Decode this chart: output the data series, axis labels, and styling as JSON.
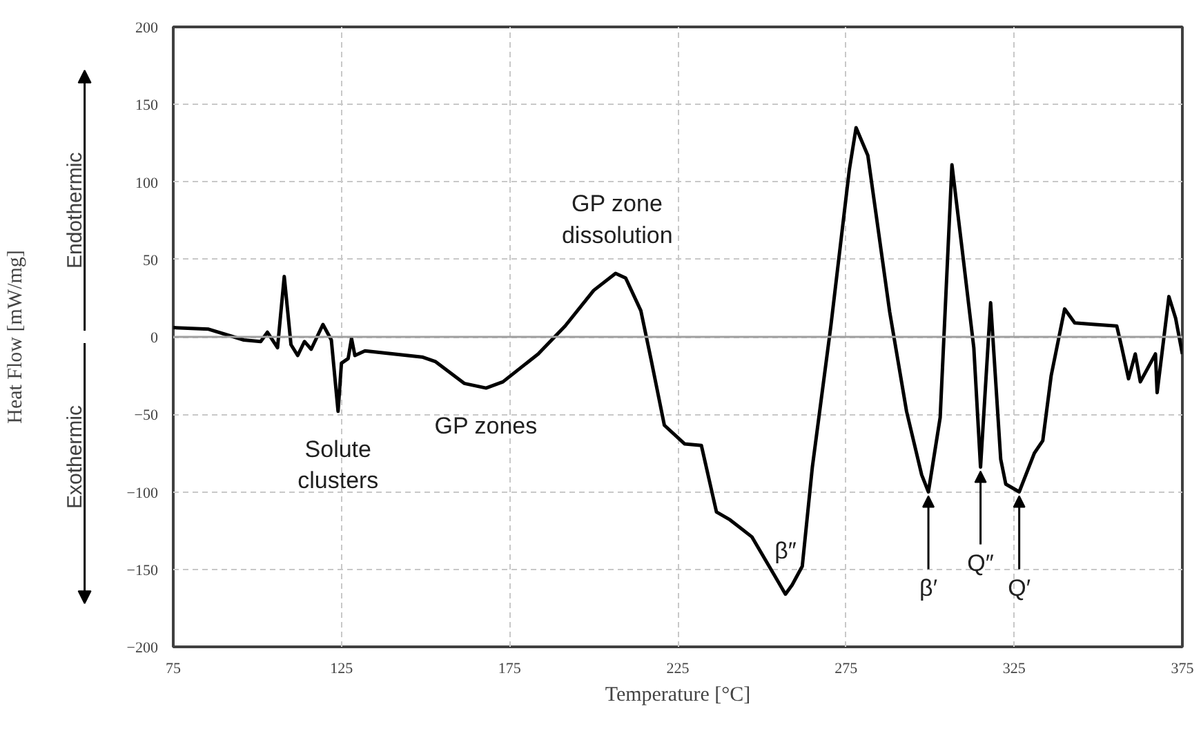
{
  "chart_data": {
    "type": "line",
    "xlabel": "Temperature [°C]",
    "ylabel": "Heat Flow [mW/mg]",
    "x": [
      75,
      85.5,
      96,
      101,
      103,
      106,
      108,
      110,
      112,
      114,
      116,
      119.5,
      122,
      124,
      125,
      127,
      128,
      129,
      132,
      149,
      153,
      161.5,
      168,
      173,
      183.5,
      191.5,
      200,
      206.5,
      209.5,
      214,
      217,
      221,
      227,
      232,
      236.5,
      240.5,
      247,
      253.5,
      257,
      259,
      262,
      265,
      270.5,
      276,
      278,
      281.5,
      288,
      293,
      297.5,
      299.5,
      303,
      306.5,
      309.5,
      313,
      315,
      318,
      321,
      322.5,
      326.5,
      331,
      333.5,
      336,
      340,
      343,
      349,
      355.5,
      357,
      359,
      361,
      362.5,
      367,
      367.5,
      371,
      373,
      375
    ],
    "series": [
      {
        "color": "#000000",
        "values": [
          6,
          5,
          -2,
          -3,
          3,
          -7,
          39,
          -5,
          -12,
          -3,
          -8,
          8,
          -2,
          -48,
          -17,
          -14,
          -1,
          -12,
          -9,
          -13,
          -16,
          -30,
          -33,
          -29,
          -11,
          7,
          30,
          41,
          38,
          17,
          -14,
          -57,
          -69,
          -70,
          -113,
          -118,
          -129,
          -153,
          -166,
          -160,
          -148,
          -84,
          7,
          108,
          135,
          117,
          16,
          -48,
          -89,
          -100,
          -52,
          111,
          57,
          -7,
          -84,
          22,
          -79,
          -95,
          -100,
          -75,
          -67,
          -25,
          18,
          9,
          8,
          7,
          -7,
          -27,
          -11,
          -29,
          -11,
          -36,
          26,
          12,
          -11
        ]
      }
    ],
    "xlim": [
      75,
      375
    ],
    "ylim": [
      -200,
      200
    ],
    "xticks": [
      75,
      125,
      175,
      225,
      275,
      325,
      375
    ],
    "yticks": [
      -200,
      -150,
      -100,
      -50,
      0,
      50,
      100,
      150,
      200
    ],
    "grid": true,
    "ref_lines": [
      {
        "axis": "y",
        "value": 0,
        "color": "#a0a0a0"
      }
    ],
    "annotations": [
      "Endothermic",
      "Exothermic",
      {
        "text": "Solute clusters",
        "x": 124,
        "y": -48
      },
      {
        "text": "GP zones",
        "x": 168,
        "y": -33
      },
      {
        "text": "GP zone dissolution",
        "x": 207,
        "y": 41
      },
      {
        "text": "β″",
        "x": 257,
        "y": -166
      },
      {
        "text": "β′",
        "x": 299.5,
        "y": -100
      },
      {
        "text": "Q″",
        "x": 315,
        "y": -84
      },
      {
        "text": "Q′",
        "x": 326.5,
        "y": -100
      }
    ]
  }
}
